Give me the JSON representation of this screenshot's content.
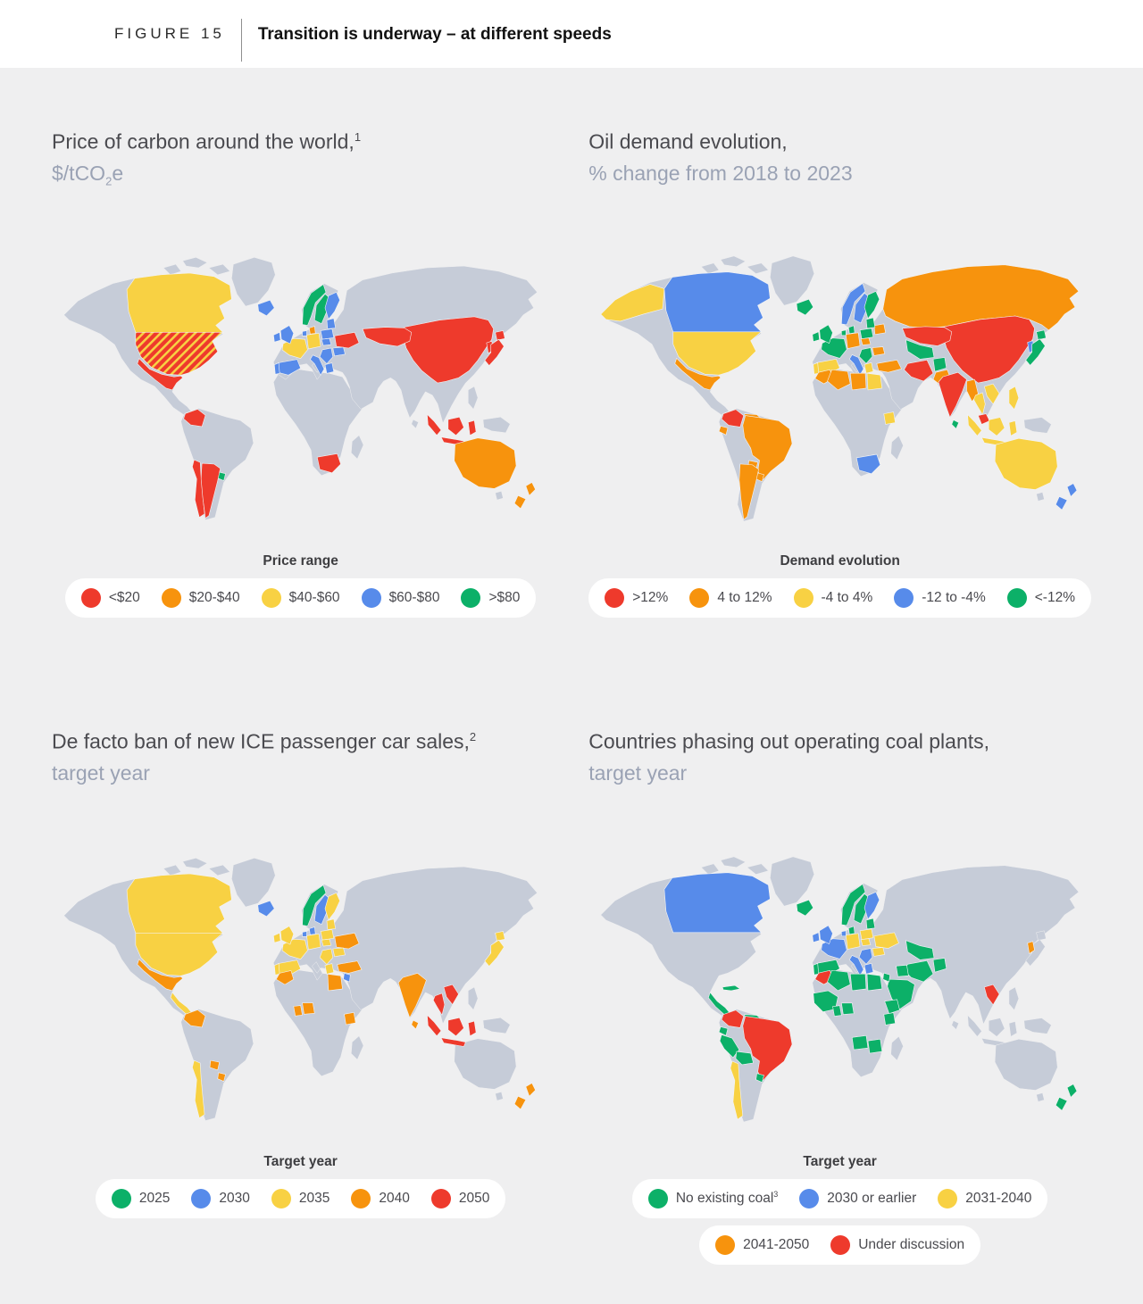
{
  "header": {
    "figure_label": "FIGURE 15",
    "title": "Transition is underway – at different speeds"
  },
  "palette": {
    "red": "#EE3A2C",
    "orange": "#F7930D",
    "yellow": "#F8D143",
    "blue": "#578BEA",
    "green": "#0CB068",
    "base_land": "#C6CCD8",
    "page_background": "#EFEFF0",
    "hatch_base": "#EE3A2C",
    "hatch_stripe": "#F8D143"
  },
  "panels": [
    {
      "title": "Price of carbon around the world,",
      "title_sup": "1",
      "subtitle_pre": "$/tCO",
      "subtitle_sub": "2",
      "subtitle_post": "e",
      "legend_title": "Price range",
      "legend": [
        {
          "label": "<$20",
          "color": "red"
        },
        {
          "label": "$20-$40",
          "color": "orange"
        },
        {
          "label": "$40-$60",
          "color": "yellow"
        },
        {
          "label": "$60-$80",
          "color": "blue"
        },
        {
          "label": ">$80",
          "color": "green"
        }
      ],
      "countries": {
        "canada": "yellow",
        "usa": "hatch",
        "mexico": "red",
        "colombia": "red",
        "chile": "red",
        "argentina": "red",
        "uruguay": "green",
        "iceland": "blue",
        "uk": "blue",
        "ireland": "blue",
        "norway": "green",
        "sweden": "green",
        "finland": "blue",
        "denmark": "orange",
        "germany": "yellow",
        "netherlands": "blue",
        "france": "yellow",
        "spain": "blue",
        "portugal": "blue",
        "italy": "blue",
        "czechia": "blue",
        "poland": "blue",
        "baltics": "blue",
        "ukraine": "red",
        "romania": "blue",
        "balkans": "blue",
        "greece": "blue",
        "kazakhstan": "red",
        "china": "red",
        "korea": "red",
        "japan": "red",
        "indonesia": "red",
        "australia": "orange",
        "nz": "orange",
        "southafrica": "red"
      }
    },
    {
      "title": "Oil demand evolution,",
      "title_sup": "",
      "subtitle_pre": "% change from 2018 to 2023",
      "subtitle_sub": "",
      "subtitle_post": "",
      "legend_title": "Demand evolution",
      "legend": [
        {
          "label": ">12%",
          "color": "red"
        },
        {
          "label": "4 to 12%",
          "color": "orange"
        },
        {
          "label": "-4 to 4%",
          "color": "yellow"
        },
        {
          "label": "-12 to -4%",
          "color": "blue"
        },
        {
          "label": "<-12%",
          "color": "green"
        }
      ],
      "countries": {
        "alaska": "yellow",
        "canada": "blue",
        "usa": "yellow",
        "mexico": "orange",
        "colombia": "red",
        "venezuela": "orange",
        "ecuador": "orange",
        "brazil": "orange",
        "paraguay": "orange",
        "uruguay": "orange",
        "argentina": "orange",
        "iceland": "green",
        "uk": "green",
        "ireland": "green",
        "norway": "blue",
        "sweden": "blue",
        "finland": "green",
        "denmark": "green",
        "germany": "orange",
        "netherlands": "green",
        "france": "green",
        "spain": "yellow",
        "portugal": "yellow",
        "italy": "blue",
        "czechia": "orange",
        "poland": "green",
        "baltics": "green",
        "belarus": "orange",
        "romania": "orange",
        "balkans": "green",
        "greece": "yellow",
        "turkey": "orange",
        "russia": "orange",
        "kazakhstan": "red",
        "centralasia": "green",
        "iran": "red",
        "afghanistan": "green",
        "pakistan": "orange",
        "india": "red",
        "srilanka": "green",
        "myanmar": "orange",
        "thailand": "yellow",
        "vietnam": "yellow",
        "malaysia": "red",
        "china": "red",
        "korea": "blue",
        "japan": "green",
        "indonesia": "yellow",
        "philippines": "yellow",
        "australia": "yellow",
        "nz": "blue",
        "morocco": "orange",
        "algeria": "orange",
        "libya": "orange",
        "egypt": "yellow",
        "kenya": "yellow",
        "southafrica": "blue"
      }
    },
    {
      "title": "De facto ban of new ICE passenger car sales,",
      "title_sup": "2",
      "subtitle_pre": "target year",
      "subtitle_sub": "",
      "subtitle_post": "",
      "legend_title": "Target year",
      "legend": [
        {
          "label": "2025",
          "color": "green"
        },
        {
          "label": "2030",
          "color": "blue"
        },
        {
          "label": "2035",
          "color": "yellow"
        },
        {
          "label": "2040",
          "color": "orange"
        },
        {
          "label": "2050",
          "color": "red"
        }
      ],
      "countries": {
        "canada": "yellow",
        "usa": "yellow",
        "mexico": "orange",
        "centralamerica": "yellow",
        "colombia": "orange",
        "chile": "yellow",
        "paraguay": "orange",
        "uruguay": "orange",
        "iceland": "blue",
        "uk": "yellow",
        "ireland": "yellow",
        "norway": "green",
        "sweden": "blue",
        "finland": "yellow",
        "denmark": "blue",
        "netherlands": "blue",
        "germany": "yellow",
        "france": "yellow",
        "spain": "yellow",
        "portugal": "yellow",
        "czechia": "yellow",
        "poland": "yellow",
        "baltics": "yellow",
        "romania": "yellow",
        "balkans": "yellow",
        "greece": "yellow",
        "ukraine": "orange",
        "turkey": "orange",
        "mideast": "blue",
        "morocco": "orange",
        "egypt": "orange",
        "ghana": "orange",
        "nigeria": "orange",
        "kenya": "orange",
        "india": "orange",
        "srilanka": "orange",
        "thailand": "red",
        "vietnam": "red",
        "indonesia": "red",
        "japan": "yellow",
        "nz": "orange"
      }
    },
    {
      "title": "Countries phasing out operating coal plants,",
      "title_sup": "",
      "subtitle_pre": "target year",
      "subtitle_sub": "",
      "subtitle_post": "",
      "legend_title": "Target year",
      "legend_rows": [
        [
          {
            "label": "No existing coal",
            "sup": "3",
            "color": "green"
          },
          {
            "label": "2030 or earlier",
            "sup": "",
            "color": "blue"
          },
          {
            "label": "2031-2040",
            "sup": "",
            "color": "yellow"
          }
        ],
        [
          {
            "label": "2041-2050",
            "sup": "",
            "color": "orange"
          },
          {
            "label": "Under discussion",
            "sup": "",
            "color": "red"
          }
        ]
      ],
      "countries": {
        "canada": "blue",
        "centralamerica": "green",
        "cuba": "green",
        "colombia": "red",
        "venezuela": "green",
        "guyanas": "green",
        "ecuador": "green",
        "peru": "green",
        "bolivia": "green",
        "brazil": "red",
        "uruguay": "green",
        "chile": "yellow",
        "iceland": "green",
        "uk": "blue",
        "ireland": "blue",
        "norway": "green",
        "sweden": "green",
        "finland": "blue",
        "denmark": "green",
        "netherlands": "blue",
        "germany": "yellow",
        "france": "blue",
        "spain": "green",
        "portugal": "green",
        "italy": "blue",
        "czechia": "yellow",
        "poland": "yellow",
        "baltics": "green",
        "ukraine": "yellow",
        "romania": "yellow",
        "balkans": "blue",
        "greece": "blue",
        "morocco": "red",
        "algeria": "green",
        "libya": "green",
        "egypt": "green",
        "westafrica": "green",
        "ghana": "green",
        "nigeria": "green",
        "ethiopia": "green",
        "kenya": "green",
        "angola": "green",
        "zambia": "green",
        "iran": "green",
        "iraq": "green",
        "saudi": "green",
        "mideast": "green",
        "afghanistan": "green",
        "centralasia": "green",
        "korea": "orange",
        "vietnam": "red",
        "nz": "green"
      }
    }
  ]
}
